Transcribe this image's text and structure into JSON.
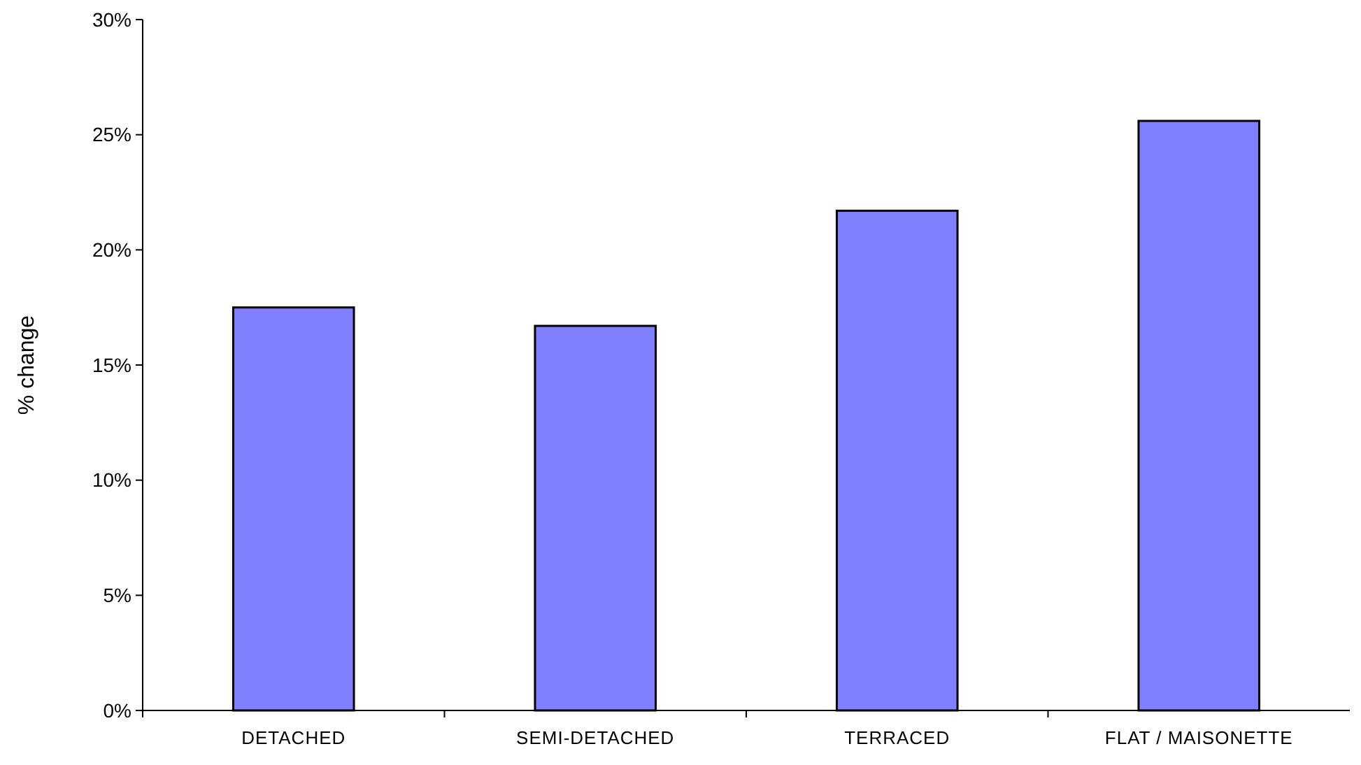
{
  "chart_data": {
    "type": "bar",
    "ylabel": "% change",
    "categories": [
      "DETACHED",
      "SEMI-DETACHED",
      "TERRACED",
      "FLAT / MAISONETTE"
    ],
    "values": [
      17.5,
      16.7,
      21.7,
      25.6
    ],
    "color": "#8080ff",
    "ylim": [
      0,
      30
    ],
    "yticks": [
      {
        "value": 0,
        "label": "0%"
      },
      {
        "value": 5,
        "label": "5%"
      },
      {
        "value": 10,
        "label": "10%"
      },
      {
        "value": 15,
        "label": "15%"
      },
      {
        "value": 20,
        "label": "20%"
      },
      {
        "value": 25,
        "label": "25%"
      },
      {
        "value": 30,
        "label": "30%"
      }
    ]
  }
}
